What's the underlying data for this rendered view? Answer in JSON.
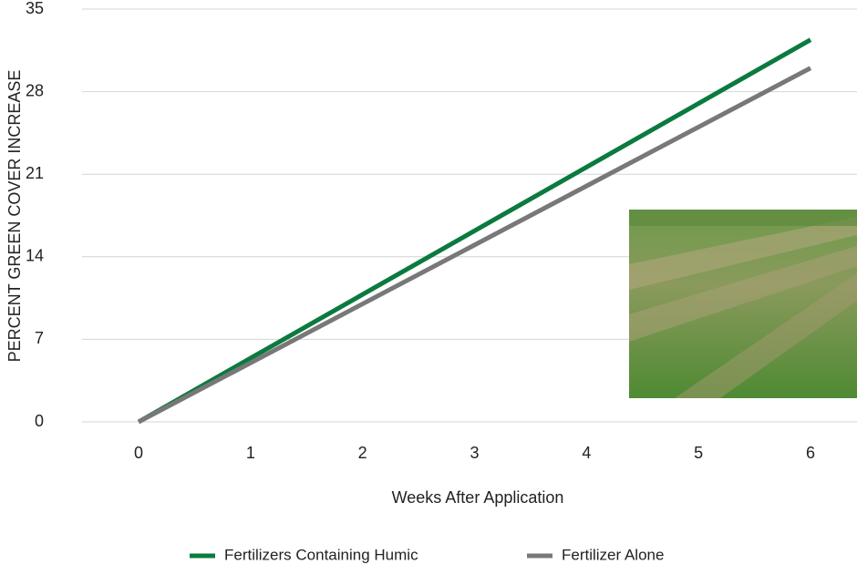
{
  "chart_data": {
    "type": "line",
    "x_label": "Weeks After Application",
    "y_label": "PERCENT GREEN COVER INCREASE",
    "x": [
      0,
      1,
      2,
      3,
      4,
      5,
      6
    ],
    "xlim": [
      0,
      6
    ],
    "xticks": [
      0,
      1,
      2,
      3,
      4,
      5,
      6
    ],
    "ylim": [
      0,
      35
    ],
    "yticks": [
      0,
      7,
      14,
      21,
      28,
      35
    ],
    "grid": true,
    "legend": "bottom",
    "series": [
      {
        "name": "Fertilizers Containing Humic",
        "color": "#0b7a3e",
        "values": [
          0,
          5.4,
          10.8,
          16.2,
          21.6,
          27,
          32.4
        ]
      },
      {
        "name": "Fertilizer Alone",
        "color": "#787878",
        "values": [
          0,
          5,
          10,
          15,
          20,
          25,
          30
        ]
      }
    ]
  }
}
